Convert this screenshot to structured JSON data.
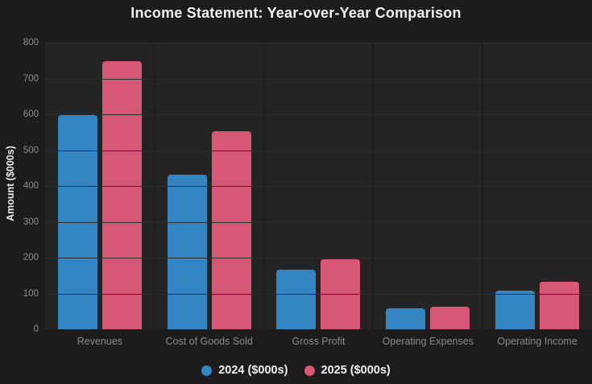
{
  "chart_data": {
    "type": "bar",
    "title": "Income Statement: Year-over-Year Comparison",
    "categories": [
      "Revenues",
      "Cost of Goods Sold",
      "Gross Profit",
      "Operating Expenses",
      "Operating Income"
    ],
    "series": [
      {
        "name": "2024 ($000s)",
        "color": "#3486c3",
        "values": [
          598,
          431,
          167,
          58,
          109
        ]
      },
      {
        "name": "2025 ($000s)",
        "color": "#d65876",
        "values": [
          749,
          553,
          196,
          64,
          132
        ]
      }
    ],
    "xlabel": "",
    "ylabel": "Amount ($000s)",
    "ylim": [
      0,
      800
    ],
    "yticks": [
      0,
      100,
      200,
      300,
      400,
      500,
      600,
      700,
      800
    ],
    "grid": true,
    "legend_position": "bottom",
    "legend_marker": "circle"
  },
  "colors": {
    "page_bg": "#1c1c1c",
    "plot_bg": "#242424",
    "gridline": "#2e2e2e",
    "separator": "#1d1d1d",
    "tick_label": "#8e8e8e",
    "category_label": "#8a8a8a",
    "title_text": "#f2f2f2",
    "legend_text": "#f0f0f0",
    "axis_title": "#e8e8e8",
    "series_2024": "#3486c3",
    "series_2025": "#d65876"
  }
}
